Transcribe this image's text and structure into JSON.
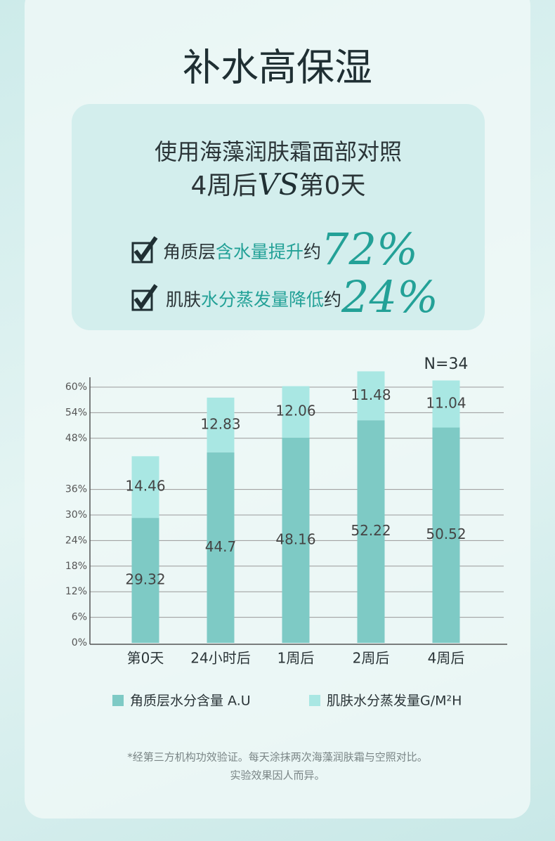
{
  "title": "补水高保湿",
  "intro": {
    "line1": "使用海藻润肤霜面部对照",
    "before_vs": "4周后",
    "vs": "VS",
    "after_vs": "第0天"
  },
  "claims": [
    {
      "prefix": "角质层",
      "highlight": "含水量提升",
      "approx": "约",
      "figure": "72%"
    },
    {
      "prefix": "肌肤",
      "highlight": "水分蒸发量降低",
      "approx": "约",
      "figure": "24%"
    }
  ],
  "chart_data": {
    "type": "stacked_bar",
    "annotation": "N=34",
    "categories": [
      "第0天",
      "24小时后",
      "1周后",
      "2周后",
      "4周后"
    ],
    "series": [
      {
        "name": "角质层水分含量 A.U",
        "color": "#7ecac5",
        "values": [
          29.32,
          44.7,
          48.16,
          52.22,
          50.52
        ]
      },
      {
        "name": "肌肤水分蒸发量G/M²H",
        "color": "#a9e7e3",
        "values": [
          14.46,
          12.83,
          12.06,
          11.48,
          11.04
        ]
      }
    ],
    "ylim": [
      0,
      62.3
    ],
    "yticks": [
      {
        "value": 0,
        "label": "0%"
      },
      {
        "value": 6,
        "label": "6%"
      },
      {
        "value": 12,
        "label": "12%"
      },
      {
        "value": 18,
        "label": "18%"
      },
      {
        "value": 24,
        "label": "24%"
      },
      {
        "value": 30,
        "label": "30%"
      },
      {
        "value": 36,
        "label": "36%"
      },
      {
        "value": 48,
        "label": "48%"
      },
      {
        "value": 54,
        "label": "54%"
      },
      {
        "value": 60,
        "label": "60%"
      }
    ],
    "grid": true
  },
  "footnote": [
    "*经第三方机构功效验证。每天涂抹两次海藻润肤霜与空照对比。",
    "实验效果因人而异。"
  ]
}
